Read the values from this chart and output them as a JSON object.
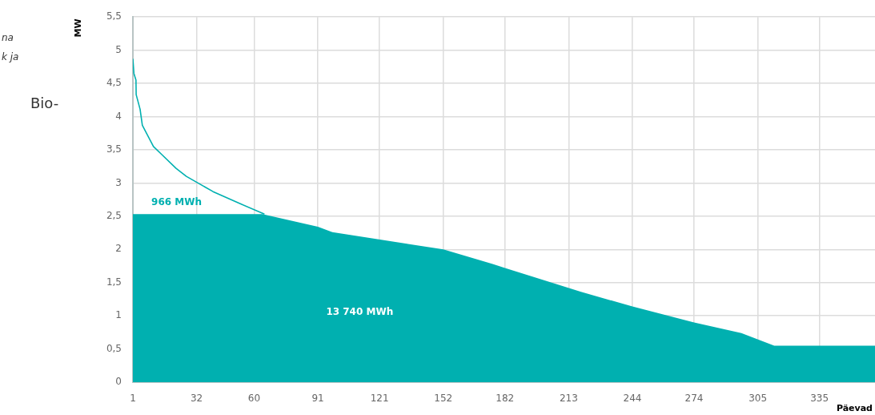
{
  "chart_data": {
    "type": "area",
    "xlabel": "Päevad",
    "ylabel": "MW",
    "series": [
      {
        "color": "#00b0b0",
        "x": [
          1,
          64,
          91,
          98,
          152,
          176,
          182,
          219,
          244,
          274,
          297,
          313,
          362
        ],
        "values": [
          2.53,
          2.53,
          2.34,
          2.26,
          2.0,
          1.78,
          1.72,
          1.36,
          1.14,
          0.9,
          0.74,
          0.55,
          0.55
        ]
      },
      {
        "type": "line",
        "color": "#00b0b0",
        "x": [
          1,
          1.5,
          2.5,
          2.6,
          4.5,
          5.6,
          11,
          15,
          22,
          27,
          40,
          53,
          65
        ],
        "values": [
          4.87,
          4.65,
          4.55,
          4.33,
          4.11,
          3.87,
          3.55,
          3.43,
          3.22,
          3.1,
          2.87,
          2.69,
          2.53
        ]
      }
    ],
    "xlim": [
      1,
      362
    ],
    "xticks": [
      1,
      32,
      60,
      91,
      121,
      152,
      182,
      213,
      244,
      274,
      305,
      335
    ],
    "ylim": [
      0,
      5.5
    ],
    "yticks": [
      0,
      {
        "value": 0.5,
        "label": "0,5"
      },
      1,
      {
        "value": 1.5,
        "label": "1,5"
      },
      2,
      {
        "value": 2.5,
        "label": "2,5"
      },
      3,
      {
        "value": 3.5,
        "label": "3,5"
      },
      4,
      {
        "value": 4.5,
        "label": "4,5"
      },
      5,
      {
        "value": 5.5,
        "label": "5,5"
      }
    ],
    "grid": true,
    "legend": false,
    "marker": "none",
    "annotations": [
      "966 MWh",
      "13 740 MWh",
      "na",
      "k ja",
      "Bio-"
    ]
  }
}
